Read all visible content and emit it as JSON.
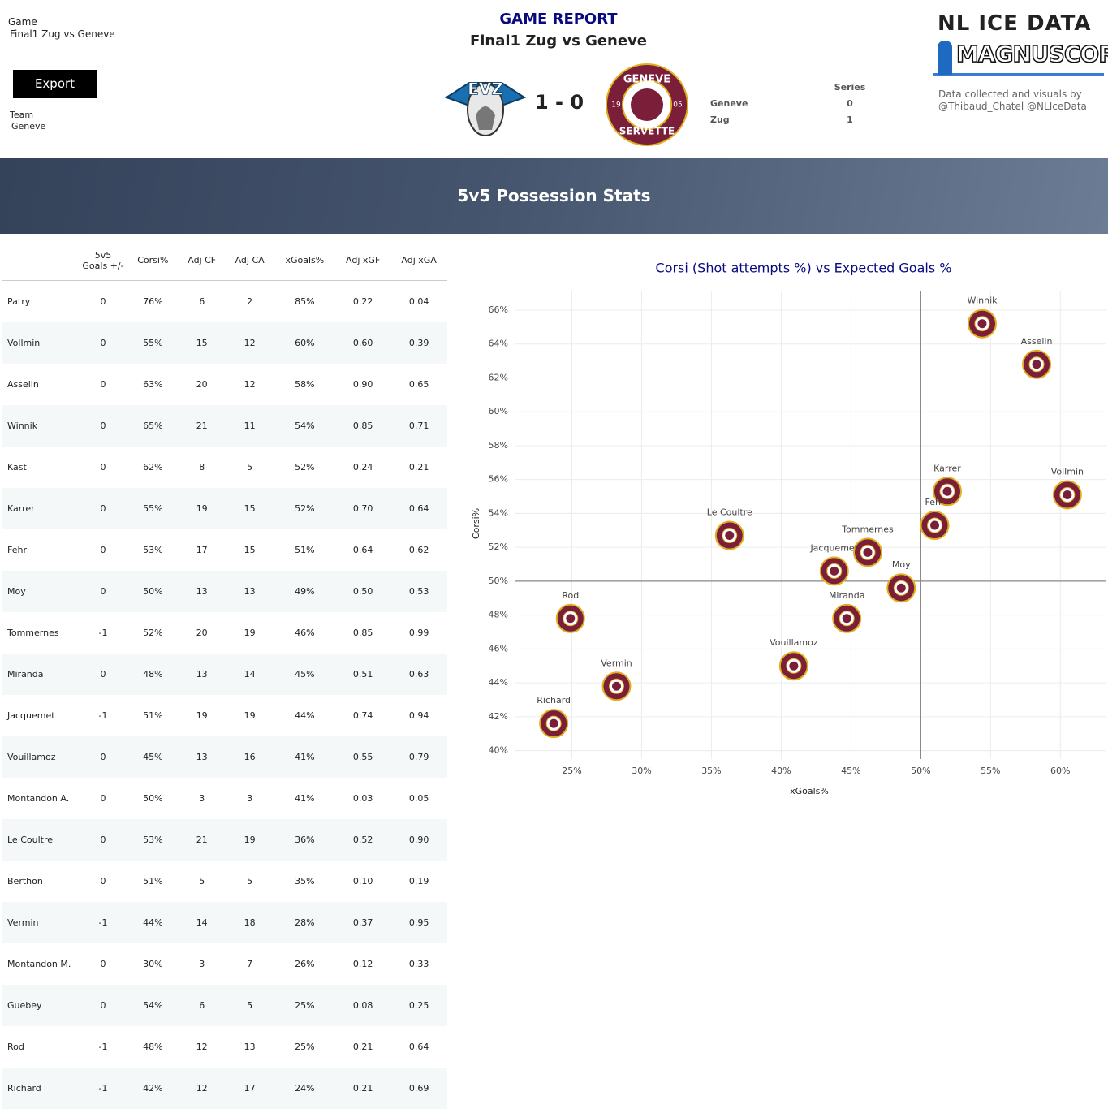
{
  "header": {
    "game_label": "Game",
    "game_value": "Final1 Zug vs Geneve",
    "export": "Export",
    "team_label": "Team",
    "team_value": "Geneve",
    "report_title": "GAME REPORT",
    "report_subtitle": "Final1 Zug vs Geneve",
    "score": "1 - 0",
    "home_logo": "EVZ",
    "away_logo": {
      "top": "GENEVE",
      "bottom": "SERVETTE",
      "left": "19",
      "right": "05"
    },
    "series": {
      "title": "Series",
      "rows": [
        [
          "Geneve",
          "0"
        ],
        [
          "Zug",
          "1"
        ]
      ]
    },
    "brand_top": "NL ICE DATA",
    "brand_bottom": "MAGNUSCORSI",
    "credit_line1": "Data collected and visuals by",
    "credit_line2": "@Thibaud_Chatel @NLIceData"
  },
  "banner": "5v5 Possession Stats",
  "table": {
    "columns": [
      "",
      "5v5 Goals +/-",
      "Corsi%",
      "Adj CF",
      "Adj CA",
      "xGoals%",
      "Adj xGF",
      "Adj xGA"
    ],
    "rows": [
      [
        "Patry",
        "0",
        "76%",
        "6",
        "2",
        "85%",
        "0.22",
        "0.04"
      ],
      [
        "Vollmin",
        "0",
        "55%",
        "15",
        "12",
        "60%",
        "0.60",
        "0.39"
      ],
      [
        "Asselin",
        "0",
        "63%",
        "20",
        "12",
        "58%",
        "0.90",
        "0.65"
      ],
      [
        "Winnik",
        "0",
        "65%",
        "21",
        "11",
        "54%",
        "0.85",
        "0.71"
      ],
      [
        "Kast",
        "0",
        "62%",
        "8",
        "5",
        "52%",
        "0.24",
        "0.21"
      ],
      [
        "Karrer",
        "0",
        "55%",
        "19",
        "15",
        "52%",
        "0.70",
        "0.64"
      ],
      [
        "Fehr",
        "0",
        "53%",
        "17",
        "15",
        "51%",
        "0.64",
        "0.62"
      ],
      [
        "Moy",
        "0",
        "50%",
        "13",
        "13",
        "49%",
        "0.50",
        "0.53"
      ],
      [
        "Tommernes",
        "-1",
        "52%",
        "20",
        "19",
        "46%",
        "0.85",
        "0.99"
      ],
      [
        "Miranda",
        "0",
        "48%",
        "13",
        "14",
        "45%",
        "0.51",
        "0.63"
      ],
      [
        "Jacquemet",
        "-1",
        "51%",
        "19",
        "19",
        "44%",
        "0.74",
        "0.94"
      ],
      [
        "Vouillamoz",
        "0",
        "45%",
        "13",
        "16",
        "41%",
        "0.55",
        "0.79"
      ],
      [
        "Montandon A.",
        "0",
        "50%",
        "3",
        "3",
        "41%",
        "0.03",
        "0.05"
      ],
      [
        "Le Coultre",
        "0",
        "53%",
        "21",
        "19",
        "36%",
        "0.52",
        "0.90"
      ],
      [
        "Berthon",
        "0",
        "51%",
        "5",
        "5",
        "35%",
        "0.10",
        "0.19"
      ],
      [
        "Vermin",
        "-1",
        "44%",
        "14",
        "18",
        "28%",
        "0.37",
        "0.95"
      ],
      [
        "Montandon M.",
        "0",
        "30%",
        "3",
        "7",
        "26%",
        "0.12",
        "0.33"
      ],
      [
        "Guebey",
        "0",
        "54%",
        "6",
        "5",
        "25%",
        "0.08",
        "0.25"
      ],
      [
        "Rod",
        "-1",
        "48%",
        "12",
        "13",
        "25%",
        "0.21",
        "0.64"
      ],
      [
        "Richard",
        "-1",
        "42%",
        "12",
        "17",
        "24%",
        "0.21",
        "0.69"
      ]
    ]
  },
  "chart_data": {
    "type": "scatter",
    "title": "Corsi (Shot attempts %) vs Expected Goals %",
    "xlabel": "xGoals%",
    "ylabel": "Corsi%",
    "labels": [
      "Winnik",
      "Asselin",
      "Karrer",
      "Vollmin",
      "Fehr",
      "Le Coultre",
      "Tommernes",
      "Jacquemet",
      "Moy",
      "Miranda",
      "Rod",
      "Vouillamoz",
      "Vermin",
      "Richard"
    ],
    "x": [
      54.4,
      58.3,
      51.9,
      60.5,
      51.0,
      36.3,
      46.2,
      43.8,
      48.6,
      44.7,
      24.9,
      40.9,
      28.2,
      23.7
    ],
    "values": [
      65.2,
      62.8,
      55.3,
      55.1,
      53.3,
      52.7,
      51.7,
      50.6,
      49.6,
      47.8,
      47.8,
      45.0,
      43.8,
      41.6
    ],
    "color": "#7b1e3a",
    "xlim": [
      20.9,
      63.3
    ],
    "ylim": [
      39.5,
      67.15
    ],
    "xticks": [
      {
        "value": 25,
        "label": "25%"
      },
      {
        "value": 30,
        "label": "30%"
      },
      {
        "value": 35,
        "label": "35%"
      },
      {
        "value": 40,
        "label": "40%"
      },
      {
        "value": 45,
        "label": "45%"
      },
      {
        "value": 50,
        "label": "50%"
      },
      {
        "value": 55,
        "label": "55%"
      },
      {
        "value": 60,
        "label": "60%"
      }
    ],
    "yticks": [
      {
        "value": 40,
        "label": "40%"
      },
      {
        "value": 42,
        "label": "42%"
      },
      {
        "value": 44,
        "label": "44%"
      },
      {
        "value": 46,
        "label": "46%"
      },
      {
        "value": 48,
        "label": "48%"
      },
      {
        "value": 50,
        "label": "50%"
      },
      {
        "value": 52,
        "label": "52%"
      },
      {
        "value": 54,
        "label": "54%"
      },
      {
        "value": 56,
        "label": "56%"
      },
      {
        "value": 58,
        "label": "58%"
      },
      {
        "value": 60,
        "label": "60%"
      },
      {
        "value": 62,
        "label": "62%"
      },
      {
        "value": 64,
        "label": "64%"
      },
      {
        "value": 66,
        "label": "66%"
      }
    ],
    "xref": 50,
    "yref": 50,
    "grid": true
  }
}
